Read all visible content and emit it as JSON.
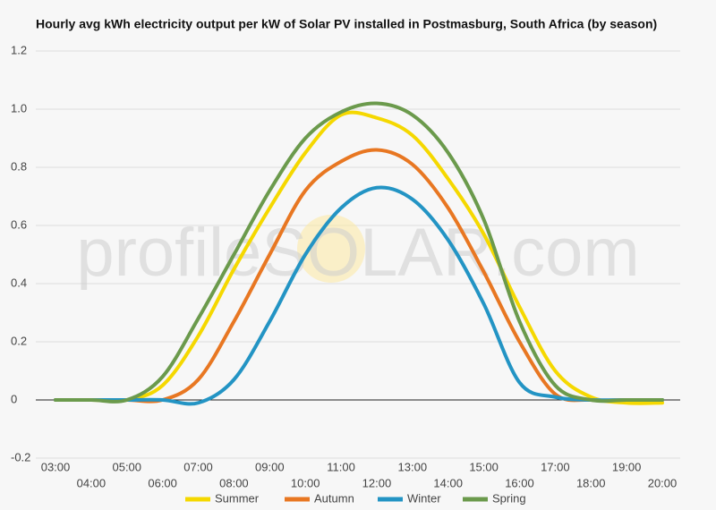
{
  "chart_data": {
    "type": "line",
    "title": "Hourly avg kWh electricity output per kW of Solar PV installed in Postmasburg, South Africa (by season)",
    "watermark": "profileSOLAR.com",
    "categories": [
      "03:00",
      "04:00",
      "05:00",
      "06:00",
      "07:00",
      "08:00",
      "09:00",
      "10:00",
      "11:00",
      "12:00",
      "13:00",
      "14:00",
      "15:00",
      "16:00",
      "17:00",
      "18:00",
      "19:00",
      "20:00"
    ],
    "series": [
      {
        "name": "Summer",
        "color": "#f5d800",
        "values": [
          0,
          0,
          0,
          0.05,
          0.22,
          0.45,
          0.66,
          0.85,
          0.98,
          0.97,
          0.91,
          0.76,
          0.57,
          0.32,
          0.1,
          0.01,
          -0.01,
          -0.01
        ]
      },
      {
        "name": "Autumn",
        "color": "#e87722",
        "values": [
          0,
          0,
          0,
          0,
          0.07,
          0.27,
          0.5,
          0.72,
          0.82,
          0.86,
          0.81,
          0.66,
          0.44,
          0.2,
          0.02,
          0,
          0,
          0
        ]
      },
      {
        "name": "Winter",
        "color": "#2394c4",
        "values": [
          0,
          0,
          0,
          0,
          -0.01,
          0.07,
          0.27,
          0.5,
          0.66,
          0.73,
          0.69,
          0.55,
          0.33,
          0.06,
          0.01,
          0,
          0,
          0
        ]
      },
      {
        "name": "Spring",
        "color": "#6b9a4c",
        "values": [
          0,
          0,
          0,
          0.08,
          0.28,
          0.5,
          0.72,
          0.9,
          0.99,
          1.02,
          0.98,
          0.85,
          0.62,
          0.27,
          0.05,
          0,
          0,
          0
        ]
      }
    ],
    "ylim": [
      -0.2,
      1.2
    ],
    "yticks": [
      -0.2,
      0,
      0.2,
      0.4,
      0.6,
      0.8,
      {
        "value": 1,
        "label": "1.0"
      },
      1.2
    ],
    "grid": true
  }
}
